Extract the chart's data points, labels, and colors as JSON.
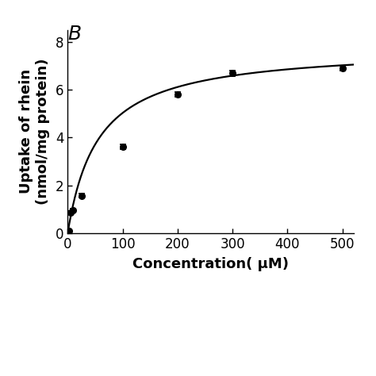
{
  "panel_label": "B",
  "x_data": [
    2,
    5,
    10,
    25,
    100,
    200,
    300,
    500
  ],
  "y_data": [
    0.08,
    0.85,
    0.95,
    1.57,
    3.6,
    5.8,
    6.7,
    6.9
  ],
  "y_err": [
    0.04,
    0.06,
    0.06,
    0.07,
    0.1,
    0.1,
    0.12,
    0.09
  ],
  "xlabel": "Concentration( μM)",
  "ylabel_line1": "Uptake of rhein",
  "ylabel_line2": "(nmol/mg protein)",
  "xlim": [
    0,
    520
  ],
  "ylim": [
    0,
    8.5
  ],
  "xticks": [
    0,
    100,
    200,
    300,
    400,
    500
  ],
  "yticks": [
    0,
    2,
    4,
    6,
    8
  ],
  "vmax": 7.8,
  "km": 55,
  "curve_color": "#000000",
  "marker_color": "#000000",
  "background_color": "#ffffff",
  "panel_label_fontsize": 18,
  "axis_label_fontsize": 13,
  "tick_fontsize": 12,
  "figsize": [
    4.74,
    4.74
  ],
  "dpi": 100,
  "bottom_whitespace": 0.38
}
